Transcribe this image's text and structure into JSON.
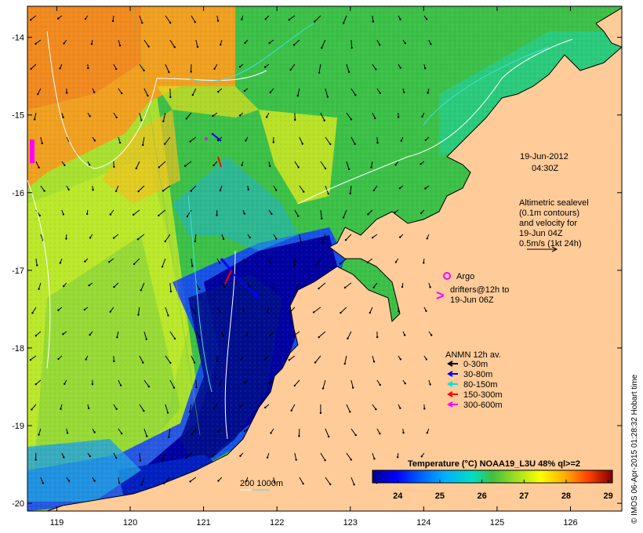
{
  "map": {
    "date_label": "19-Jun-2012",
    "time_label": "04:30Z",
    "x_ticks": [
      "119",
      "120",
      "121",
      "122",
      "123",
      "124",
      "125",
      "126"
    ],
    "y_ticks": [
      "-14",
      "-15",
      "-16",
      "-17",
      "-18",
      "-19",
      "-20"
    ],
    "lon_range": [
      118.6,
      126.7
    ],
    "lat_range": [
      -20.1,
      -13.6
    ],
    "altimetry_lines": [
      "Altimetric sealevel",
      "(0.1m contours)",
      "and velocity for",
      "19-Jun 04Z",
      "0.5m/s (1kt 24h)"
    ],
    "argo_label": "Argo",
    "drifters_lines": [
      "drifters@12h to",
      "19-Jun 06Z"
    ],
    "drifter_symbol": ">",
    "anmn_title": "ANMN 12h av.",
    "anmn_legend": [
      {
        "label": "0-30m",
        "color": "#000000"
      },
      {
        "label": "30-80m",
        "color": "#0000ff"
      },
      {
        "label": "80-150m",
        "color": "#00e0e0"
      },
      {
        "label": "150-300m",
        "color": "#ff0000"
      },
      {
        "label": "300-600m",
        "color": "#ff00ff"
      }
    ],
    "depth_legend": "200  1000m",
    "credit": "© IMOS 06-Apr-2015 01:28:32 Hobart time"
  },
  "colorbar": {
    "title": "Temperature (°C) NOAA19_L3U 48% ql>=2",
    "ticks": [
      "24",
      "25",
      "26",
      "27",
      "28",
      "29"
    ],
    "range": [
      23.4,
      29.1
    ],
    "stops": [
      "#00008b",
      "#0000ff",
      "#0080ff",
      "#00ffff",
      "#00d080",
      "#40c040",
      "#ffff00",
      "#ffa000",
      "#ff4000",
      "#800000"
    ]
  },
  "colors": {
    "land": "#ffcc99",
    "warm_sst": "#f0a020",
    "mid_sst": "#40c040",
    "cool_sst": "#00008b"
  }
}
